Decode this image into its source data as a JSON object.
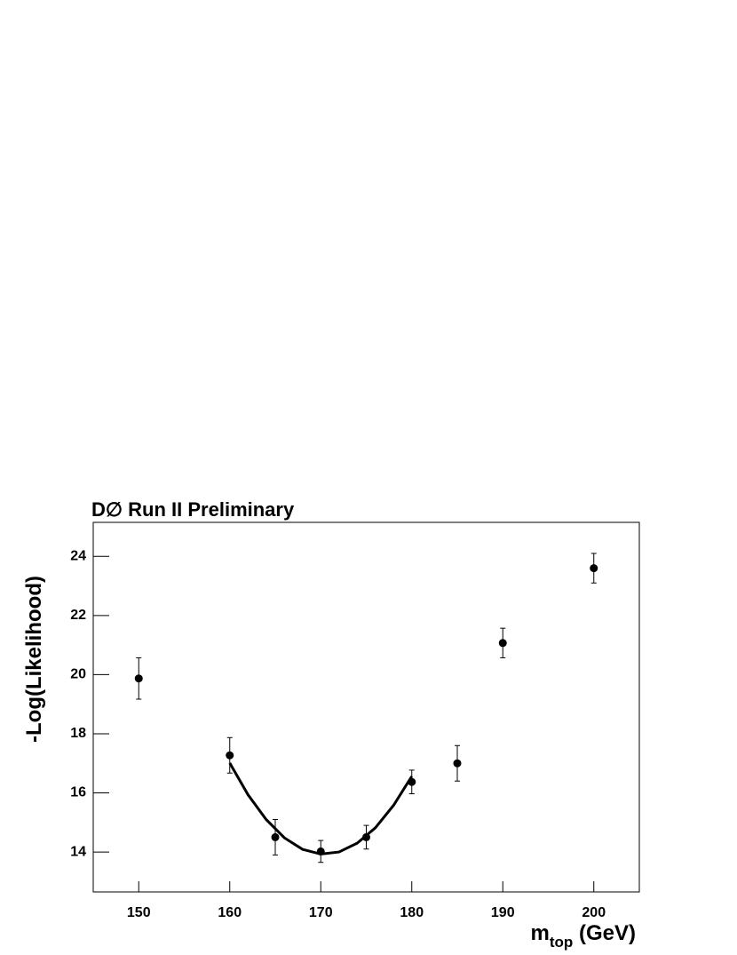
{
  "chart_data": {
    "type": "scatter",
    "title": "D∅ Run II Preliminary",
    "y_label": "-Log(Likelihood)",
    "x_label": {
      "main": "m",
      "sub": "top",
      "rest": " (GeV)"
    },
    "x": [
      150,
      160,
      165,
      170,
      175,
      180,
      185,
      190,
      200
    ],
    "values": [
      19.87,
      17.27,
      14.5,
      14.02,
      14.5,
      16.37,
      17.0,
      21.07,
      23.6
    ],
    "errors": [
      0.7,
      0.6,
      0.6,
      0.37,
      0.4,
      0.4,
      0.6,
      0.5,
      0.5
    ],
    "color": "#000000",
    "fit": {
      "x": [
        160,
        162,
        164,
        166,
        168,
        170,
        172,
        174,
        176,
        178,
        180
      ],
      "y": [
        17.01,
        15.94,
        15.1,
        14.48,
        14.09,
        13.93,
        14.0,
        14.3,
        14.82,
        15.58,
        16.56
      ]
    },
    "xlim": [
      145,
      205
    ],
    "ylim": [
      12.65,
      25.15
    ],
    "xticks": [
      150,
      160,
      170,
      180,
      190,
      200
    ],
    "yticks": [
      14,
      16,
      18,
      20,
      22,
      24
    ]
  }
}
